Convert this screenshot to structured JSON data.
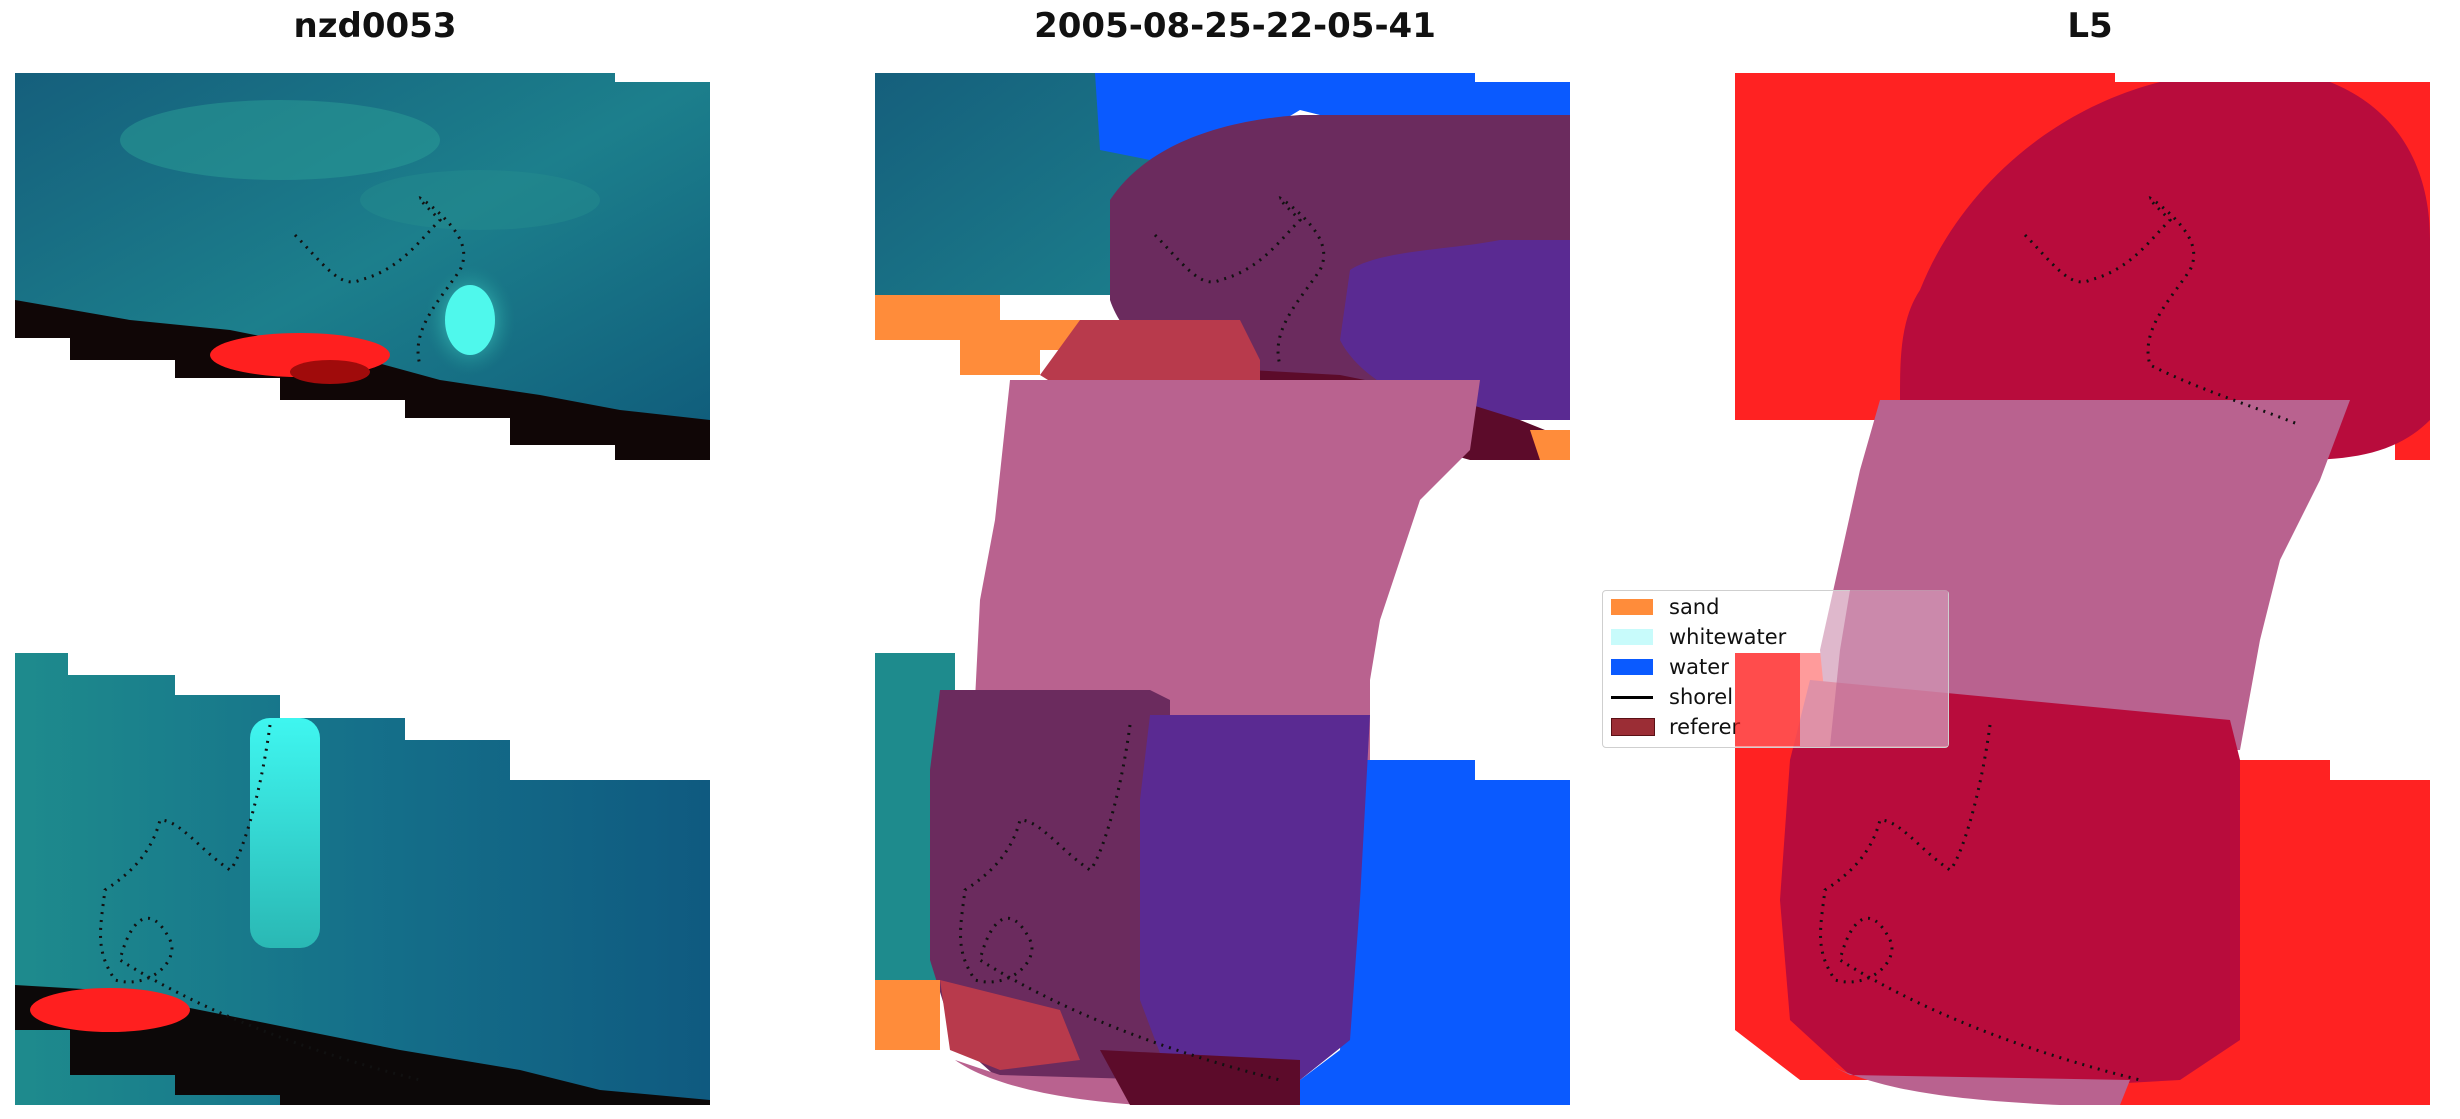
{
  "titles": {
    "image": "nzd0053",
    "date": "2005-08-25-22-05-41",
    "satellite": "L5"
  },
  "legend": {
    "items": [
      {
        "label": "sand",
        "color": "#ff8c3a",
        "kind": "patch"
      },
      {
        "label": "whitewater",
        "color": "#c8fbfb",
        "kind": "patch"
      },
      {
        "label": "water",
        "color": "#0a5aff",
        "kind": "patch"
      },
      {
        "label": "shorel",
        "color": "#000000",
        "kind": "line"
      },
      {
        "label": "referer",
        "color": "#9b2d35",
        "kind": "patch"
      }
    ]
  },
  "colors": {
    "ocean_dark": "#0f5e7a",
    "ocean_teal": "#1e8c8c",
    "whitewater_cyan": "#3ff0e8",
    "land_red": "#ff1a1a",
    "classified_pink": "#b9628f",
    "classified_purple": "#5a2a92",
    "classified_plum": "#6b2b5e",
    "sand": "#ff8c3a",
    "water": "#0a5aff",
    "reference_buffer": "#ff2222",
    "reference_overlap": "#b80c3c"
  }
}
